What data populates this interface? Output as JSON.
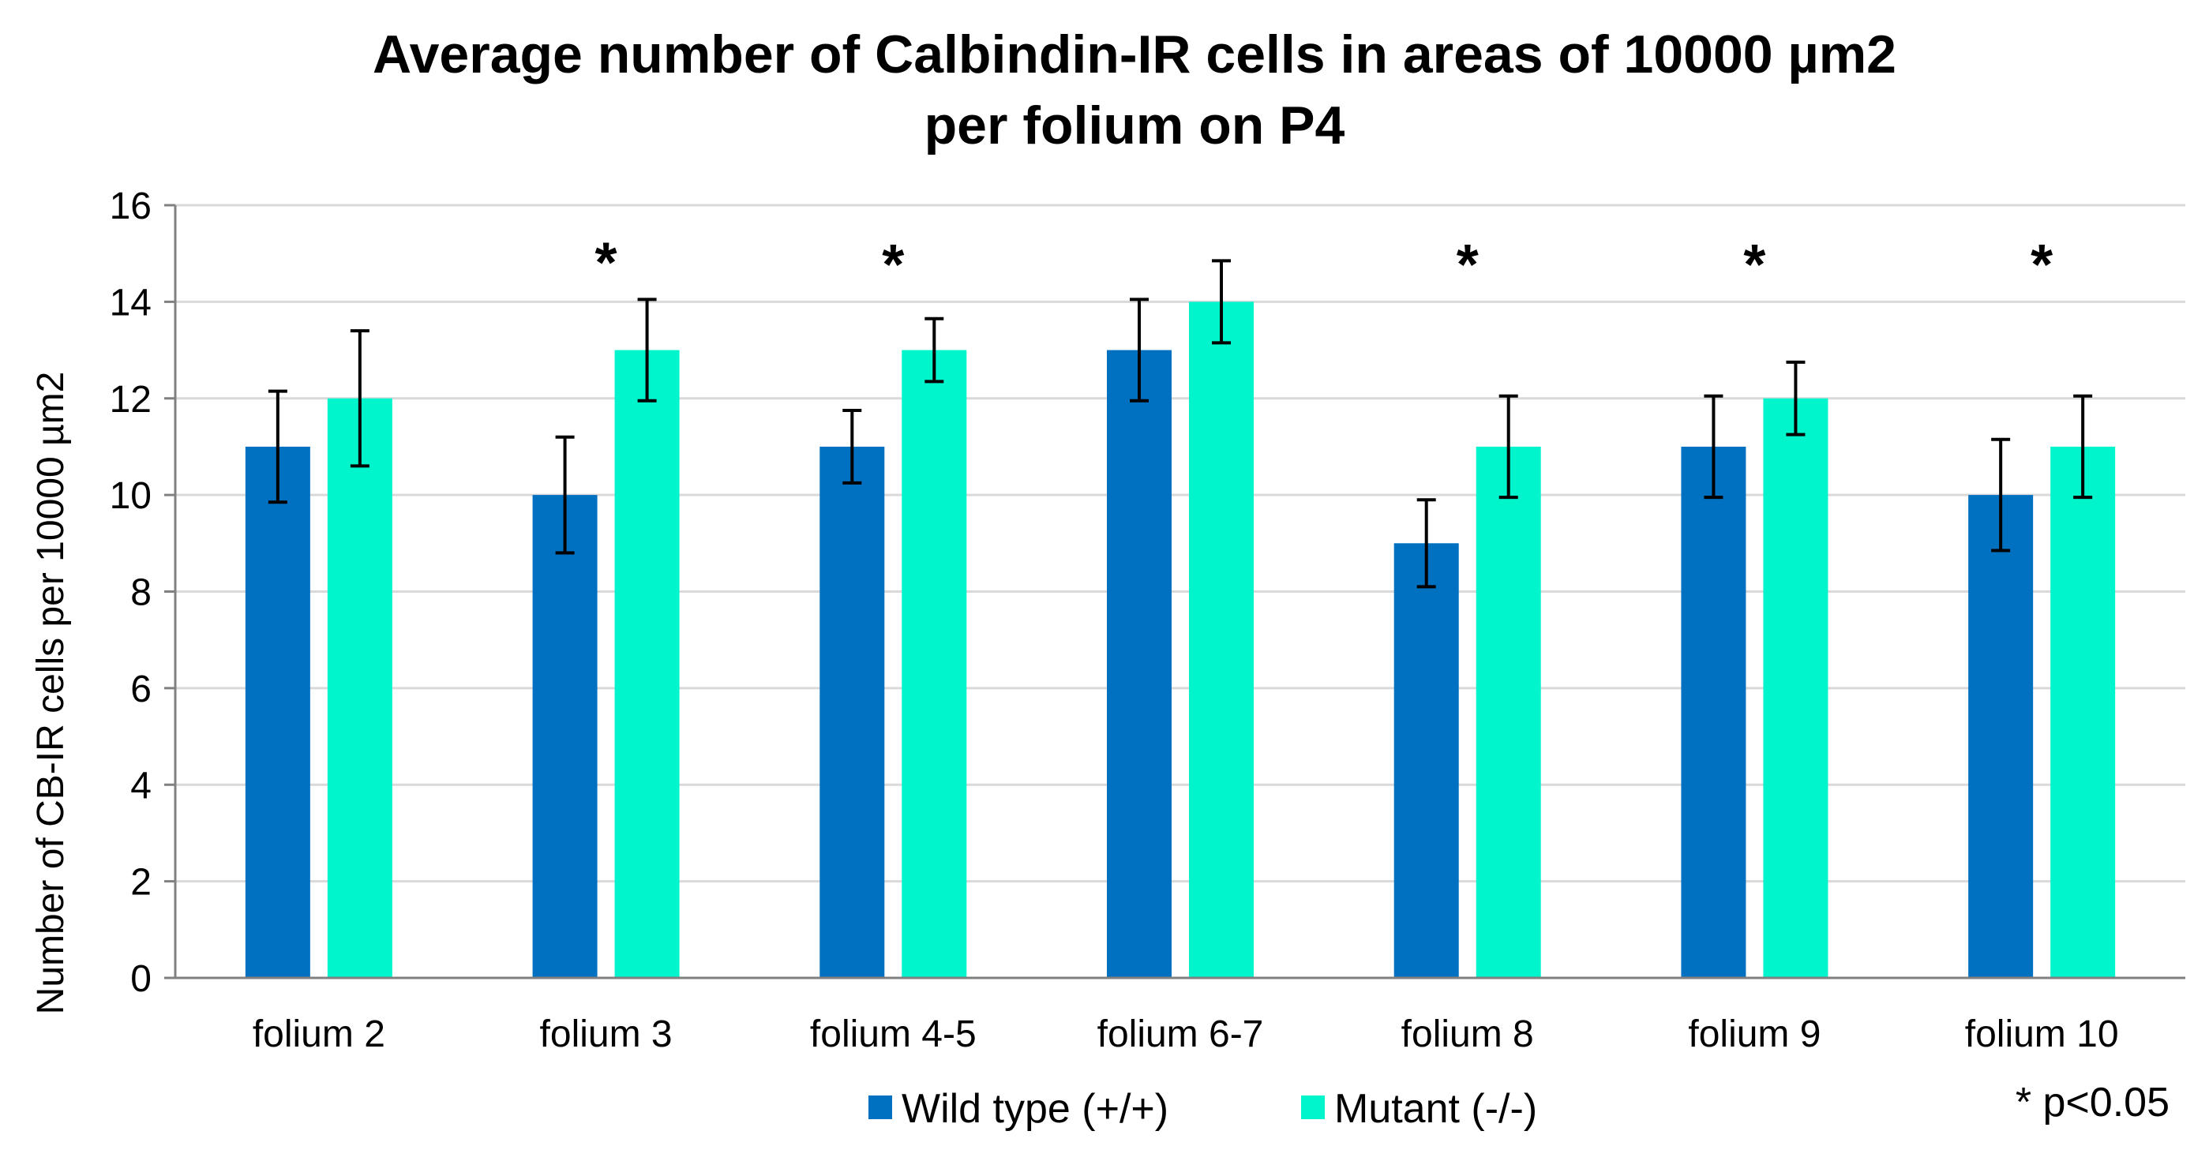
{
  "chart_data": {
    "type": "bar",
    "title_line1": "Average number of Calbindin-IR cells in areas of 10000 µm2",
    "title_line2": "per folium on P4",
    "xlabel": "",
    "ylabel": "Number of CB-IR cells per 10000 µm2",
    "ylim": [
      0,
      16
    ],
    "yticks": [
      0,
      2,
      4,
      6,
      8,
      10,
      12,
      14,
      16
    ],
    "grid": true,
    "categories": [
      "folium 2",
      "folium 3",
      "folium 4-5",
      "folium 6-7",
      "folium 8",
      "folium 9",
      "folium 10"
    ],
    "series": [
      {
        "name": "Wild type (+/+)",
        "color": "#0070C0",
        "values": [
          11,
          10,
          11,
          13,
          9,
          11,
          10
        ],
        "errors": [
          1.15,
          1.2,
          0.75,
          1.05,
          0.9,
          1.05,
          1.15
        ]
      },
      {
        "name": "Mutant (-/-)",
        "color": "#00F5CC",
        "values": [
          12,
          13,
          13,
          14,
          11,
          12,
          11
        ],
        "errors": [
          1.4,
          1.05,
          0.65,
          0.85,
          1.05,
          0.75,
          1.05
        ]
      }
    ],
    "significance_marker": "*",
    "significant": [
      false,
      true,
      true,
      false,
      true,
      true,
      true
    ],
    "significance_note": "* p<0.05",
    "legend_position": "bottom-center"
  }
}
